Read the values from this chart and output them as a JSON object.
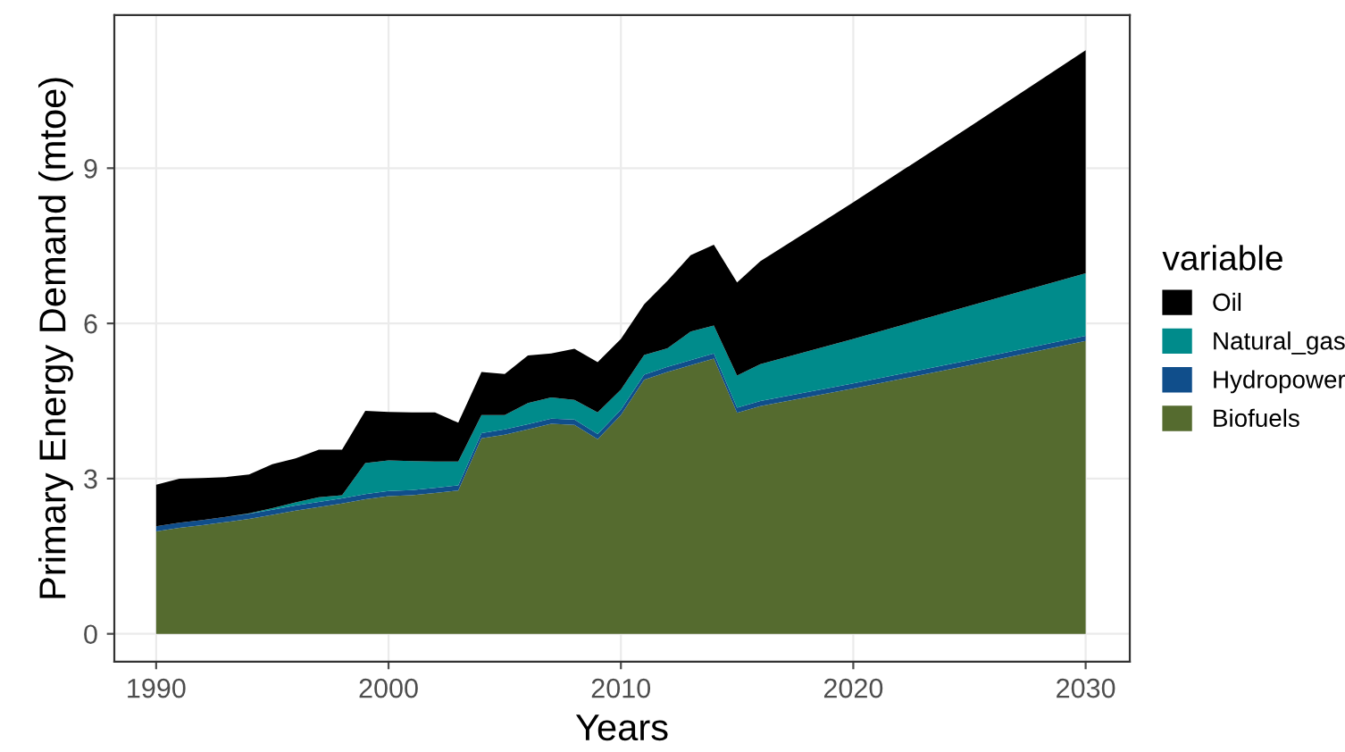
{
  "chart_data": {
    "type": "area",
    "stacked": true,
    "xlabel": "Years",
    "ylabel": "Primary Energy Demand (mtoe)",
    "legend_title": "variable",
    "x": [
      1990,
      1991,
      1992,
      1993,
      1994,
      1995,
      1996,
      1997,
      1998,
      1999,
      2000,
      2001,
      2002,
      2003,
      2004,
      2005,
      2006,
      2007,
      2008,
      2009,
      2010,
      2011,
      2012,
      2013,
      2014,
      2015,
      2016,
      2020,
      2025,
      2030
    ],
    "series": [
      {
        "name": "Biofuels",
        "color": "#556b2f",
        "values": [
          1.98,
          2.05,
          2.1,
          2.16,
          2.22,
          2.3,
          2.38,
          2.45,
          2.52,
          2.6,
          2.66,
          2.68,
          2.72,
          2.77,
          3.78,
          3.85,
          3.95,
          4.06,
          4.04,
          3.76,
          4.23,
          4.91,
          5.06,
          5.19,
          5.32,
          4.27,
          4.4,
          4.74,
          5.19,
          5.66
        ]
      },
      {
        "name": "Hydropower",
        "color": "#104e8b",
        "values": [
          0.1,
          0.1,
          0.1,
          0.1,
          0.1,
          0.1,
          0.1,
          0.1,
          0.1,
          0.1,
          0.1,
          0.1,
          0.1,
          0.1,
          0.1,
          0.1,
          0.1,
          0.1,
          0.1,
          0.1,
          0.1,
          0.1,
          0.1,
          0.1,
          0.1,
          0.1,
          0.1,
          0.1,
          0.1,
          0.1
        ]
      },
      {
        "name": "Natural_gas",
        "color": "#008b8b",
        "values": [
          0,
          0,
          0,
          0,
          0.01,
          0.03,
          0.06,
          0.09,
          0.06,
          0.6,
          0.59,
          0.56,
          0.51,
          0.46,
          0.35,
          0.28,
          0.41,
          0.41,
          0.38,
          0.42,
          0.39,
          0.38,
          0.36,
          0.55,
          0.54,
          0.62,
          0.71,
          0.86,
          1.05,
          1.21
        ]
      },
      {
        "name": "Oil",
        "color": "#000000",
        "values": [
          0.8,
          0.85,
          0.81,
          0.77,
          0.75,
          0.85,
          0.85,
          0.92,
          0.88,
          1.01,
          0.94,
          0.94,
          0.95,
          0.75,
          0.83,
          0.79,
          0.92,
          0.85,
          0.99,
          0.97,
          0.98,
          0.98,
          1.3,
          1.48,
          1.56,
          1.8,
          1.99,
          2.64,
          3.46,
          4.31
        ]
      }
    ],
    "xlim": [
      1988.2,
      2031.9
    ],
    "ylim": [
      -0.54,
      11.96
    ],
    "xticks": [
      1990,
      2000,
      2010,
      2020,
      2030
    ],
    "yticks": [
      0,
      3,
      6,
      9
    ],
    "grid": true,
    "legend": "right"
  }
}
